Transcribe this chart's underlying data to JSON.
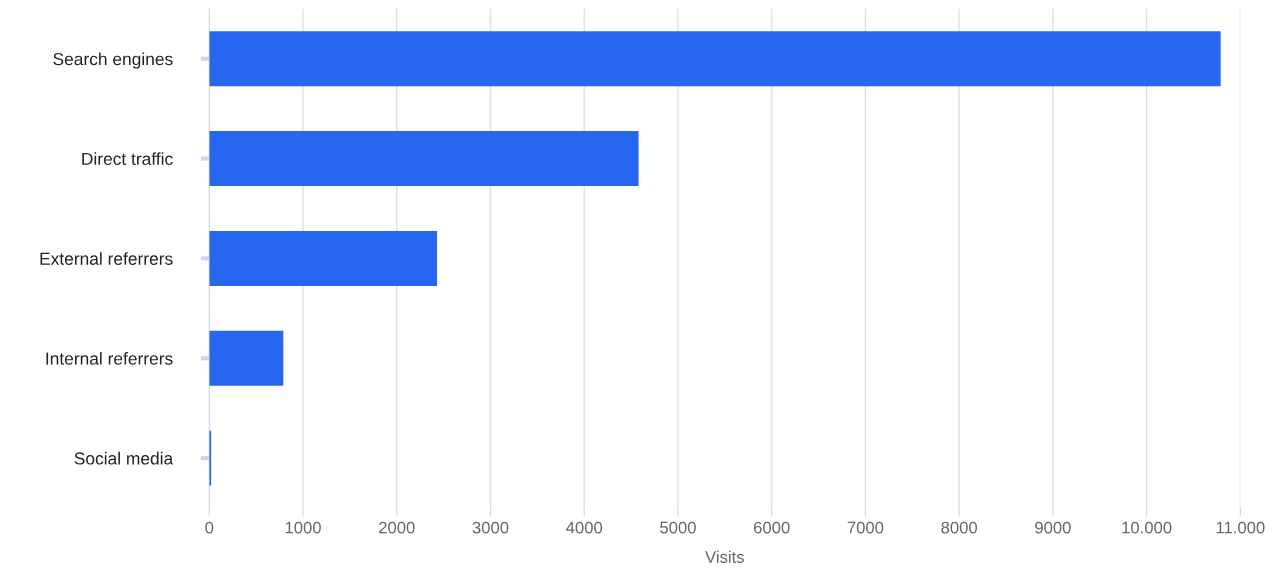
{
  "chart_data": {
    "type": "bar",
    "orientation": "horizontal",
    "xlabel": "Visits",
    "categories": [
      "Search engines",
      "Direct traffic",
      "External referrers",
      "Internal referrers",
      "Social media"
    ],
    "values": [
      10790,
      4580,
      2430,
      790,
      20
    ],
    "color": "#2767f0",
    "xlim": [
      0,
      11000
    ],
    "xticks": [
      0,
      1000,
      2000,
      3000,
      4000,
      5000,
      6000,
      7000,
      8000,
      9000,
      {
        "value": 10000,
        "label": "10.000"
      },
      {
        "value": 11000,
        "label": "11.000"
      }
    ],
    "grid": "x"
  }
}
